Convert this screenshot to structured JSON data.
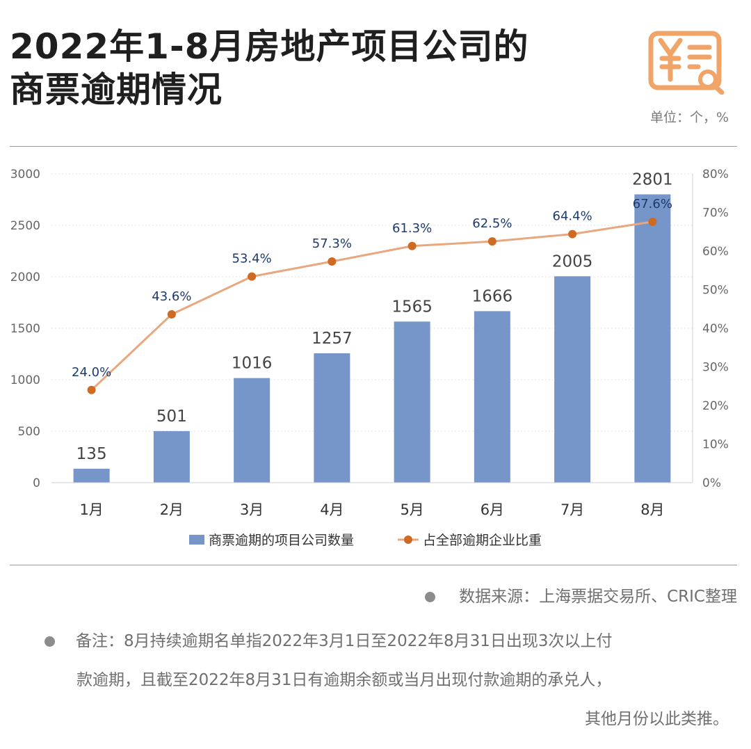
{
  "header": {
    "title_line1": "2022年1-8月房地产项目公司的",
    "title_line2": "商票逾期情况",
    "unit": "单位：个，%",
    "icon": "invoice-search-icon",
    "icon_color": "#f0a468"
  },
  "chart_data": {
    "type": "bar+line",
    "categories": [
      "1月",
      "2月",
      "3月",
      "4月",
      "5月",
      "6月",
      "7月",
      "8月"
    ],
    "series": [
      {
        "name": "商票逾期的项目公司数量",
        "type": "bar",
        "axis": "left",
        "values": [
          135,
          501,
          1016,
          1257,
          1565,
          1666,
          2005,
          2801
        ],
        "labels": [
          "135",
          "501",
          "1016",
          "1257",
          "1565",
          "1666",
          "2005",
          "2801"
        ],
        "color": "#7695c9"
      },
      {
        "name": "占全部逾期企业比重",
        "type": "line",
        "axis": "right",
        "values": [
          24.0,
          43.6,
          53.4,
          57.3,
          61.3,
          62.5,
          64.4,
          67.6
        ],
        "labels": [
          "24.0%",
          "43.6%",
          "53.4%",
          "57.3%",
          "61.3%",
          "62.5%",
          "64.4%",
          "67.6%"
        ],
        "color": "#e9a77f",
        "marker_color": "#cf6a22",
        "label_color": "#1c3a6b"
      }
    ],
    "left_axis": {
      "min": 0,
      "max": 3000,
      "ticks": [
        "0",
        "500",
        "1000",
        "1500",
        "2000",
        "2500",
        "3000"
      ]
    },
    "right_axis": {
      "min": 0,
      "max": 80,
      "ticks": [
        "0%",
        "10%",
        "20%",
        "30%",
        "40%",
        "50%",
        "60%",
        "70%",
        "80%"
      ]
    },
    "grid": true,
    "legend": "bottom-center"
  },
  "footer": {
    "source": "数据来源：上海票据交易所、CRIC整理",
    "remark_line1": "备注：8月持续逾期名单指2022年3月1日至2022年8月31日出现3次以上付",
    "remark_line2": "款逾期，且截至2022年8月31日有逾期余额或当月出现付款逾期的承兑人，",
    "remark_line3": "其他月份以此类推。"
  }
}
